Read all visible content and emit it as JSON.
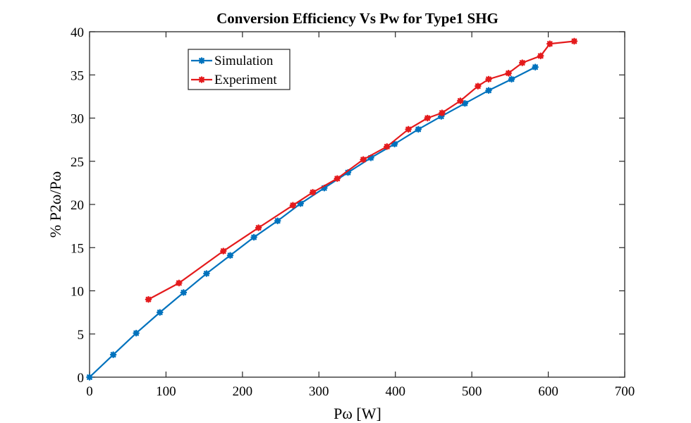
{
  "chart_data": {
    "type": "line",
    "title": "Conversion Efficiency Vs Pw for Type1 SHG",
    "xlabel": "Pω [W]",
    "ylabel": "% P2ω/Pω",
    "xlim": [
      0,
      700
    ],
    "ylim": [
      0,
      40
    ],
    "xticks": [
      0,
      100,
      200,
      300,
      400,
      500,
      600,
      700
    ],
    "yticks": [
      0,
      5,
      10,
      15,
      20,
      25,
      30,
      35,
      40
    ],
    "grid": false,
    "legend_position": "top-left",
    "series": [
      {
        "name": "Simulation",
        "color": "#0072BD",
        "marker": "asterisk",
        "x": [
          0,
          31,
          61,
          92,
          123,
          153,
          184,
          215,
          246,
          276,
          307,
          338,
          368,
          399,
          430,
          460,
          491,
          522,
          552,
          583
        ],
        "y": [
          0,
          2.6,
          5.1,
          7.5,
          9.8,
          12.0,
          14.1,
          16.2,
          18.1,
          20.1,
          21.9,
          23.7,
          25.4,
          27.0,
          28.7,
          30.2,
          31.7,
          33.2,
          34.5,
          35.9
        ]
      },
      {
        "name": "Experiment",
        "color": "#E41A1C",
        "marker": "asterisk",
        "x": [
          77,
          117,
          175,
          221,
          266,
          292,
          324,
          358,
          389,
          417,
          442,
          461,
          485,
          508,
          522,
          548,
          566,
          590,
          602,
          634
        ],
        "y": [
          9.0,
          10.9,
          14.6,
          17.3,
          19.9,
          21.4,
          23.0,
          25.2,
          26.7,
          28.7,
          30.0,
          30.6,
          32.0,
          33.7,
          34.5,
          35.2,
          36.4,
          37.2,
          38.6,
          38.9
        ]
      }
    ]
  }
}
